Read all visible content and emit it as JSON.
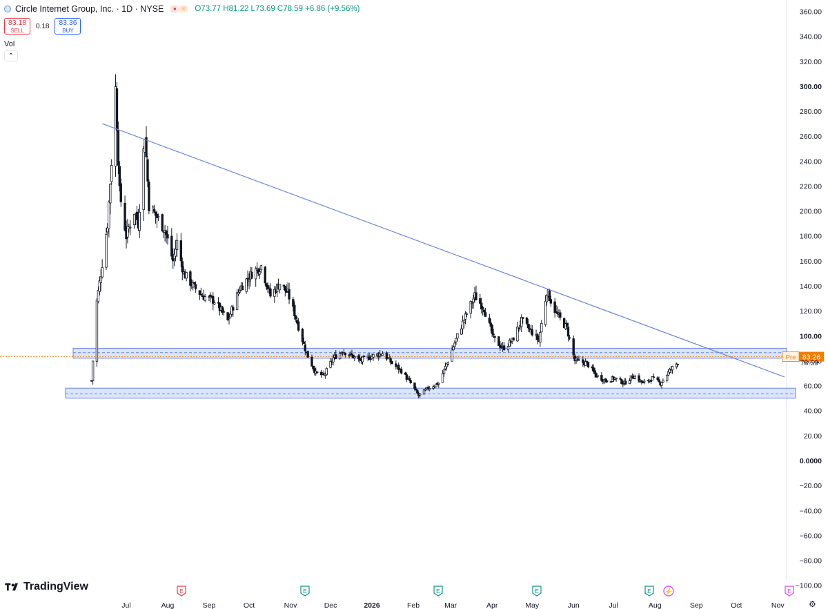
{
  "header": {
    "symbol_title": "Circle Internet Group, Inc. · 1D · NYSE",
    "ohlc": "O73.77 H81.22 L73.69 C78.59 +6.86 (+9.56%)",
    "icons": [
      "circle-logo-icon",
      "flag-icon",
      "flag-icon"
    ]
  },
  "trade": {
    "sell_price": "83.18",
    "sell_label": "SELL",
    "spread": "0.18",
    "buy_price": "83.36",
    "buy_label": "BUY"
  },
  "volume": {
    "label": "Vol",
    "collapse_icon": "chevron-up-icon",
    "collapse_glyph": "⌃"
  },
  "brand": {
    "name": "TradingView",
    "icon": "tradingview-logo-icon"
  },
  "footer": {
    "settings_icon": "gear-icon",
    "settings_glyph": "⚙"
  },
  "colors": {
    "up": "#089981",
    "down": "#f23645",
    "candle": "#131722",
    "trendline": "#6b84e0",
    "zone_fill": "#bcd0f7",
    "zone_line": "#6b84e0",
    "pre_market": "#f57c00",
    "earnings": "#089981",
    "earnings_red": "#f23645",
    "dividend": "#e040fb",
    "grid": "#f0f3fa"
  },
  "chart_data": {
    "type": "candlestick",
    "title": "Circle Internet Group, Inc. · 1D · NYSE",
    "y_ticks": [
      "360.00",
      "340.00",
      "320.00",
      "300.00",
      "280.00",
      "260.00",
      "240.00",
      "220.00",
      "200.00",
      "180.00",
      "160.00",
      "140.00",
      "120.00",
      "100.00",
      "80.00",
      "60.00",
      "40.00",
      "20.00",
      "0.0000",
      "−20.00",
      "−40.00",
      "−60.00",
      "−80.00",
      "−100.00"
    ],
    "ylim": [
      -100,
      360
    ],
    "x_labels": [
      "Jul",
      "Aug",
      "Sep",
      "Oct",
      "Nov",
      "Dec",
      "2026",
      "Feb",
      "Mar",
      "Apr",
      "May",
      "Jun",
      "Jul",
      "Aug",
      "Sep",
      "Oct",
      "Nov"
    ],
    "price_path": [
      [
        "2025-06-05",
        64
      ],
      [
        "2025-06-09",
        128
      ],
      [
        "2025-06-12",
        150
      ],
      [
        "2025-06-17",
        190
      ],
      [
        "2025-06-20",
        240
      ],
      [
        "2025-06-23",
        298
      ],
      [
        "2025-06-26",
        215
      ],
      [
        "2025-07-01",
        180
      ],
      [
        "2025-07-07",
        200
      ],
      [
        "2025-07-10",
        190
      ],
      [
        "2025-07-15",
        262
      ],
      [
        "2025-07-18",
        205
      ],
      [
        "2025-07-24",
        195
      ],
      [
        "2025-07-30",
        185
      ],
      [
        "2025-08-05",
        160
      ],
      [
        "2025-08-08",
        175
      ],
      [
        "2025-08-13",
        150
      ],
      [
        "2025-08-20",
        140
      ],
      [
        "2025-08-27",
        132
      ],
      [
        "2025-09-05",
        128
      ],
      [
        "2025-09-15",
        112
      ],
      [
        "2025-09-24",
        138
      ],
      [
        "2025-10-03",
        150
      ],
      [
        "2025-10-10",
        156
      ],
      [
        "2025-10-17",
        132
      ],
      [
        "2025-10-24",
        142
      ],
      [
        "2025-10-30",
        134
      ],
      [
        "2025-11-04",
        118
      ],
      [
        "2025-11-13",
        86
      ],
      [
        "2025-11-20",
        70
      ],
      [
        "2025-11-26",
        68
      ],
      [
        "2025-12-03",
        82
      ],
      [
        "2025-12-10",
        88
      ],
      [
        "2025-12-17",
        84
      ],
      [
        "2025-12-23",
        80
      ],
      [
        "2026-01-02",
        84
      ],
      [
        "2026-01-09",
        86
      ],
      [
        "2026-01-16",
        78
      ],
      [
        "2026-01-23",
        72
      ],
      [
        "2026-01-30",
        62
      ],
      [
        "2026-02-05",
        52
      ],
      [
        "2026-02-12",
        58
      ],
      [
        "2026-02-20",
        62
      ],
      [
        "2026-02-27",
        80
      ],
      [
        "2026-03-06",
        100
      ],
      [
        "2026-03-13",
        118
      ],
      [
        "2026-03-19",
        132
      ],
      [
        "2026-03-26",
        122
      ],
      [
        "2026-04-02",
        98
      ],
      [
        "2026-04-09",
        90
      ],
      [
        "2026-04-16",
        96
      ],
      [
        "2026-04-23",
        112
      ],
      [
        "2026-04-30",
        104
      ],
      [
        "2026-05-06",
        96
      ],
      [
        "2026-05-12",
        136
      ],
      [
        "2026-05-19",
        118
      ],
      [
        "2026-05-27",
        106
      ],
      [
        "2026-06-02",
        80
      ],
      [
        "2026-06-11",
        78
      ],
      [
        "2026-06-18",
        68
      ],
      [
        "2026-06-25",
        64
      ],
      [
        "2026-07-02",
        66
      ],
      [
        "2026-07-09",
        62
      ],
      [
        "2026-07-16",
        68
      ],
      [
        "2026-07-23",
        62
      ],
      [
        "2026-07-30",
        66
      ],
      [
        "2026-08-05",
        62
      ],
      [
        "2026-08-12",
        72
      ],
      [
        "2026-08-18",
        78.59
      ]
    ],
    "trendline": {
      "start": [
        "2025-06-13",
        270
      ],
      "end": [
        "2026-11-06",
        67
      ]
    },
    "zones": [
      {
        "low": 82,
        "high": 90,
        "mid": 86.5
      },
      {
        "low": 50,
        "high": 58,
        "mid": 53.5
      }
    ],
    "price_labels": [
      {
        "prefix": "Pre",
        "value": "83.26"
      },
      {
        "value": "78.59"
      }
    ],
    "events": [
      {
        "month": "Aug",
        "kind": "E",
        "color": "red"
      },
      {
        "month": "Nov",
        "kind": "E",
        "color": "green"
      },
      {
        "month": "Feb",
        "kind": "E",
        "color": "green"
      },
      {
        "month": "May",
        "kind": "E",
        "color": "green"
      },
      {
        "month": "Aug",
        "kind": "E",
        "color": "green"
      },
      {
        "month": "Aug",
        "kind": "bolt",
        "color": "purple"
      },
      {
        "month": "Nov",
        "kind": "E",
        "color": "purple"
      }
    ]
  }
}
